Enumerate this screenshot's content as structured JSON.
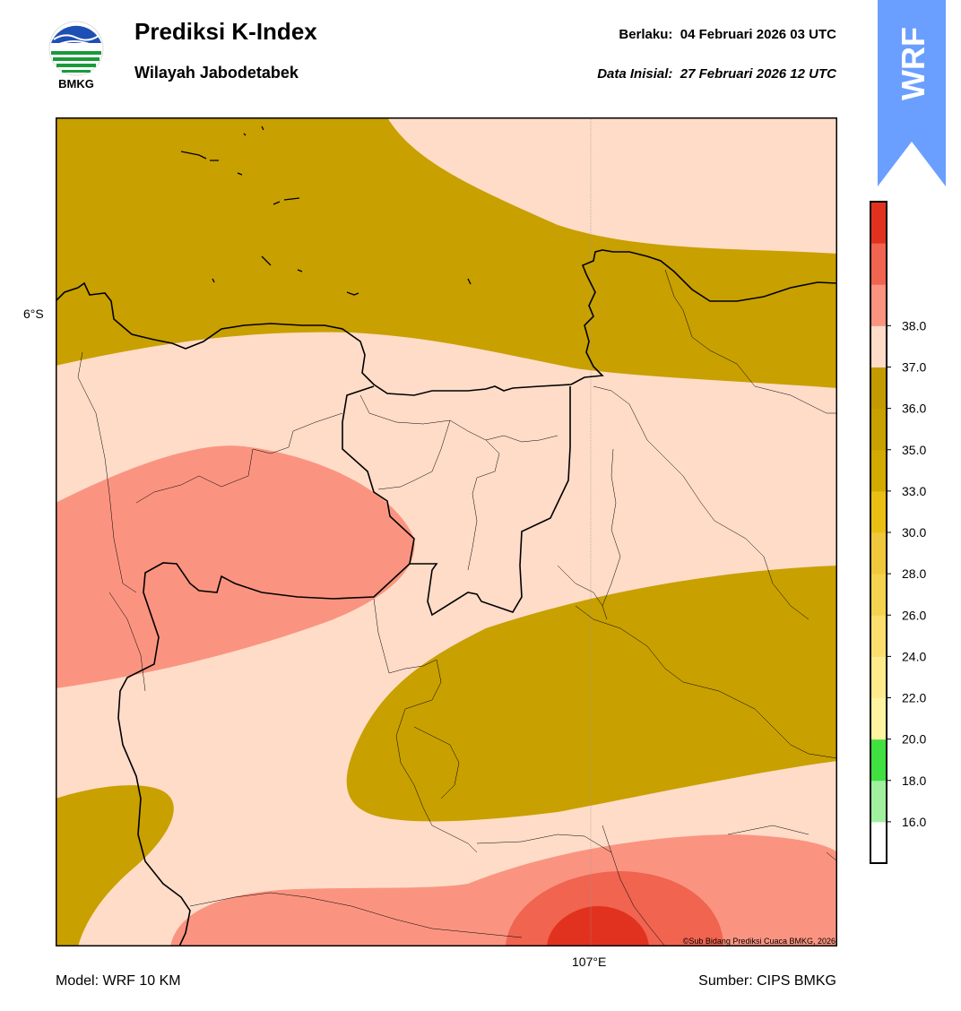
{
  "header": {
    "title": "Prediksi K-Index",
    "subtitle": "Wilayah Jabodetabek",
    "valid_label": "Berlaku:",
    "valid_value": "04 Februari 2026 03 UTC",
    "init_label": "Data Inisial:",
    "init_value": "27 Februari 2026 12 UTC"
  },
  "logo": {
    "text": "BMKG",
    "icon": "bmkg-logo"
  },
  "badge": {
    "text": "WRF",
    "color": "#6a9fff"
  },
  "map": {
    "lat_label": "6°S",
    "lon_label": "107°E",
    "credit": "©Sub Bidang Prediksi Cuaca BMKG, 2026",
    "colors": {
      "band_33_35": "#c8a000",
      "band_35_36": "#ffdcc8",
      "band_36_37": "#fa9480",
      "band_37_38": "#f06450",
      "band_38_plus": "#e13220"
    }
  },
  "colorbar": {
    "ticks": [
      "16.0",
      "18.0",
      "20.0",
      "22.0",
      "24.0",
      "26.0",
      "28.0",
      "30.0",
      "33.0",
      "35.0",
      "36.0",
      "37.0",
      "38.0"
    ],
    "colors": [
      "#ffffff",
      "#a0f0a0",
      "#40e040",
      "#fff5a0",
      "#ffeb8c",
      "#fade6e",
      "#f5d250",
      "#f0c83c",
      "#ebbe14",
      "#d2aa00",
      "#c8a000",
      "#c39b00",
      "#ffdcc8",
      "#fa9480",
      "#f06450",
      "#e13220"
    ]
  },
  "footer": {
    "model": "Model: WRF 10 KM",
    "source": "Sumber: CIPS BMKG"
  }
}
